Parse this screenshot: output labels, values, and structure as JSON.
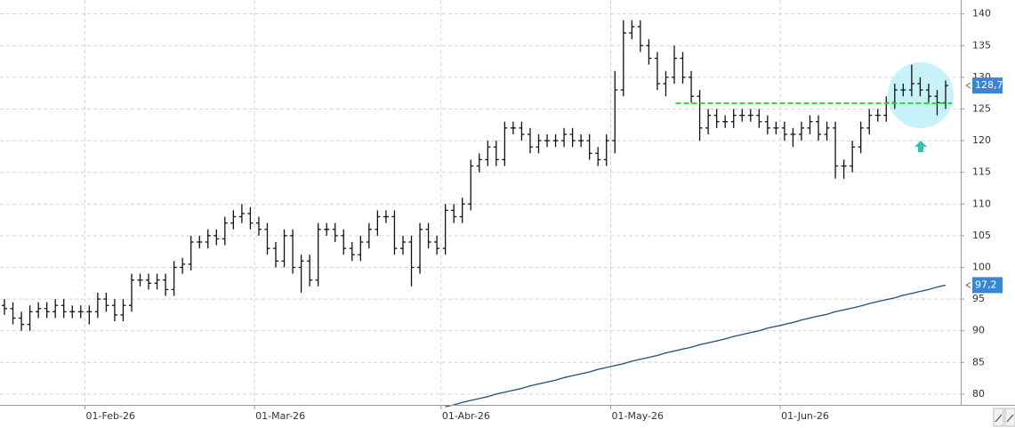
{
  "chart_data": {
    "type": "ohlc",
    "x": [
      "2026-01-19",
      "2026-01-20",
      "2026-01-21",
      "2026-01-22",
      "2026-01-23",
      "2026-01-26",
      "2026-01-27",
      "2026-01-28",
      "2026-01-29",
      "2026-01-30",
      "2026-02-02",
      "2026-02-03",
      "2026-02-04",
      "2026-02-05",
      "2026-02-06",
      "2026-02-09",
      "2026-02-10",
      "2026-02-11",
      "2026-02-12",
      "2026-02-13",
      "2026-02-16",
      "2026-02-17",
      "2026-02-18",
      "2026-02-19",
      "2026-02-20",
      "2026-02-23",
      "2026-02-24",
      "2026-02-25",
      "2026-02-26",
      "2026-02-27",
      "2026-03-02",
      "2026-03-03",
      "2026-03-04",
      "2026-03-05",
      "2026-03-06",
      "2026-03-09",
      "2026-03-10",
      "2026-03-11",
      "2026-03-12",
      "2026-03-13",
      "2026-03-16",
      "2026-03-17",
      "2026-03-18",
      "2026-03-19",
      "2026-03-20",
      "2026-03-23",
      "2026-03-24",
      "2026-03-25",
      "2026-03-26",
      "2026-03-27",
      "2026-03-30",
      "2026-03-31",
      "2026-04-01",
      "2026-04-02",
      "2026-04-07",
      "2026-04-08",
      "2026-04-09",
      "2026-04-10",
      "2026-04-13",
      "2026-04-14",
      "2026-04-15",
      "2026-04-16",
      "2026-04-17",
      "2026-04-20",
      "2026-04-21",
      "2026-04-22",
      "2026-04-23",
      "2026-04-24",
      "2026-04-27",
      "2026-04-28",
      "2026-04-29",
      "2026-04-30",
      "2026-05-04",
      "2026-05-05",
      "2026-05-06",
      "2026-05-07",
      "2026-05-08",
      "2026-05-11",
      "2026-05-12",
      "2026-05-13",
      "2026-05-14",
      "2026-05-15",
      "2026-05-18",
      "2026-05-19",
      "2026-05-20",
      "2026-05-21",
      "2026-05-22",
      "2026-05-25",
      "2026-05-26",
      "2026-05-27",
      "2026-05-28",
      "2026-05-29",
      "2026-06-01",
      "2026-06-02",
      "2026-06-03",
      "2026-06-04",
      "2026-06-05",
      "2026-06-08",
      "2026-06-09",
      "2026-06-10",
      "2026-06-11",
      "2026-06-12",
      "2026-06-15",
      "2026-06-16",
      "2026-06-17",
      "2026-06-18",
      "2026-06-19",
      "2026-06-22",
      "2026-06-23",
      "2026-06-24",
      "2026-06-25",
      "2026-06-26"
    ],
    "ohlc": {
      "color": "#111111",
      "open": [
        94,
        93.5,
        92,
        91,
        93,
        93.5,
        93,
        94,
        93,
        93,
        93,
        93,
        95,
        94,
        92.5,
        94,
        98,
        98,
        97.5,
        98,
        96.5,
        100,
        100.5,
        104,
        104,
        105,
        104.5,
        107,
        108,
        108.5,
        107,
        106,
        103,
        101,
        105,
        100,
        101,
        98,
        106,
        106,
        105,
        103,
        102,
        104,
        106,
        108,
        108,
        103,
        104,
        100,
        106,
        104,
        103,
        109,
        108,
        110,
        116,
        117,
        119,
        117,
        122,
        122,
        121,
        119,
        120,
        120,
        120,
        121,
        120,
        120,
        118,
        117,
        120,
        128,
        137,
        138,
        135,
        133,
        129,
        130,
        133,
        130,
        127,
        122,
        124,
        123,
        123,
        124,
        124,
        124,
        123,
        122,
        122,
        121,
        121,
        122,
        123,
        121,
        122,
        116,
        116,
        119,
        122,
        124,
        124,
        126,
        128,
        128,
        129,
        128,
        127,
        126
      ],
      "high": [
        95,
        94.5,
        93,
        94,
        94.5,
        94.5,
        95,
        95,
        94,
        94,
        94,
        96,
        96,
        95,
        95,
        99,
        99,
        99,
        99,
        99,
        101,
        101.5,
        105,
        105,
        106,
        106,
        108,
        109,
        110,
        109.5,
        108,
        107,
        104,
        106,
        106,
        102,
        102,
        107,
        107,
        107,
        106,
        104,
        105,
        107,
        109,
        109,
        109,
        105,
        105,
        107,
        107,
        105,
        110,
        110,
        111,
        117,
        118,
        120,
        120,
        123,
        123,
        123,
        122,
        121,
        121,
        121,
        122,
        122,
        121,
        121,
        119,
        121,
        131,
        139,
        139,
        139,
        136,
        134,
        131,
        135,
        134,
        131,
        128,
        125,
        125,
        124,
        125,
        125,
        125,
        125,
        124,
        123,
        123,
        122,
        123,
        124,
        124,
        123,
        123,
        117,
        120,
        123,
        125,
        125,
        127,
        129,
        129,
        132,
        130,
        129,
        128,
        129.5
      ],
      "low": [
        92.5,
        91,
        90,
        90,
        92,
        92,
        92,
        92,
        92,
        92,
        91,
        92,
        93,
        91.5,
        91.5,
        93,
        97,
        96.5,
        96.5,
        95.5,
        95.5,
        99,
        99.5,
        103,
        103,
        103.5,
        103.5,
        106,
        107,
        106,
        105,
        102,
        100,
        100,
        99,
        96,
        97,
        97,
        105,
        104,
        102,
        101,
        101,
        103,
        105,
        107,
        102,
        102,
        97,
        99,
        103,
        102,
        102,
        107,
        107,
        109,
        115,
        116,
        116,
        116,
        121,
        120,
        118,
        118,
        119,
        119,
        119,
        119,
        119,
        117,
        116,
        116,
        118,
        127,
        136,
        134,
        132,
        128,
        127,
        129,
        129,
        126,
        120,
        121,
        122,
        122,
        122,
        123,
        123,
        122,
        121,
        121,
        120,
        119,
        120,
        121,
        120,
        120,
        114,
        114,
        115,
        118,
        121,
        123,
        123,
        125,
        127,
        127,
        127,
        126,
        124,
        125
      ],
      "close": [
        93.5,
        92,
        91,
        93,
        93.5,
        93,
        94,
        93,
        93,
        93,
        93,
        95,
        94,
        92.5,
        94,
        98,
        98,
        97.5,
        98,
        96.5,
        100,
        100.5,
        104,
        104,
        105,
        104.5,
        107,
        108,
        108.5,
        107,
        106,
        103,
        101,
        105,
        100,
        101,
        98,
        106,
        106,
        105,
        103,
        102,
        104,
        106,
        108,
        108,
        103,
        104,
        100,
        106,
        104,
        103,
        109,
        108,
        110,
        116,
        117,
        119,
        117,
        122,
        122,
        121,
        119,
        120,
        120,
        120,
        121,
        120,
        120,
        118,
        117,
        120,
        128,
        137,
        138,
        135,
        133,
        129,
        130,
        133,
        130,
        127,
        122,
        124,
        123,
        123,
        124,
        124,
        124,
        123,
        122,
        122,
        121,
        121,
        122,
        123,
        121,
        122,
        116,
        116,
        119,
        122,
        124,
        124,
        126,
        128,
        128,
        129,
        128,
        127,
        126,
        128.7
      ]
    },
    "moving_average": {
      "color": "#1f4e79",
      "values": [
        null,
        null,
        null,
        null,
        null,
        null,
        null,
        null,
        null,
        null,
        null,
        null,
        null,
        null,
        null,
        null,
        null,
        null,
        null,
        null,
        null,
        null,
        null,
        null,
        null,
        null,
        null,
        null,
        null,
        null,
        null,
        null,
        null,
        null,
        null,
        null,
        null,
        null,
        null,
        null,
        null,
        null,
        null,
        null,
        null,
        null,
        null,
        null,
        null,
        null,
        null,
        null,
        78.0,
        78.3,
        78.7,
        79.0,
        79.3,
        79.6,
        80.0,
        80.3,
        80.6,
        80.9,
        81.3,
        81.6,
        81.9,
        82.2,
        82.6,
        82.9,
        83.2,
        83.5,
        83.9,
        84.2,
        84.5,
        84.8,
        85.2,
        85.5,
        85.8,
        86.1,
        86.5,
        86.8,
        87.1,
        87.4,
        87.8,
        88.1,
        88.4,
        88.7,
        89.1,
        89.4,
        89.7,
        90.0,
        90.4,
        90.7,
        91.0,
        91.3,
        91.7,
        92.0,
        92.3,
        92.6,
        93.0,
        93.3,
        93.6,
        93.9,
        94.3,
        94.6,
        94.9,
        95.2,
        95.6,
        95.9,
        96.2,
        96.5,
        96.9,
        97.2
      ]
    },
    "price_label": {
      "value": 128.7,
      "label": "128,7",
      "color": "#3a86d4"
    },
    "ma_label": {
      "value": 97.2,
      "label": "97,2",
      "color": "#3a86d4"
    },
    "support": {
      "value": 125.9,
      "start": "2026-05-14",
      "color": "#22dd22"
    },
    "ylim": [
      78.3,
      142.2
    ],
    "yticks": [
      80,
      85,
      90,
      95,
      100,
      105,
      110,
      115,
      120,
      125,
      130,
      135,
      140
    ],
    "xticks": [
      {
        "value": "2026-02-01",
        "label": "01-Feb-26"
      },
      {
        "value": "2026-03-01",
        "label": "01-Mar-26"
      },
      {
        "value": "2026-04-01",
        "label": "01-Abr-26"
      },
      {
        "value": "2026-05-01",
        "label": "01-May-26"
      },
      {
        "value": "2026-06-01",
        "label": "01-Jun-26"
      }
    ],
    "grid": true
  }
}
